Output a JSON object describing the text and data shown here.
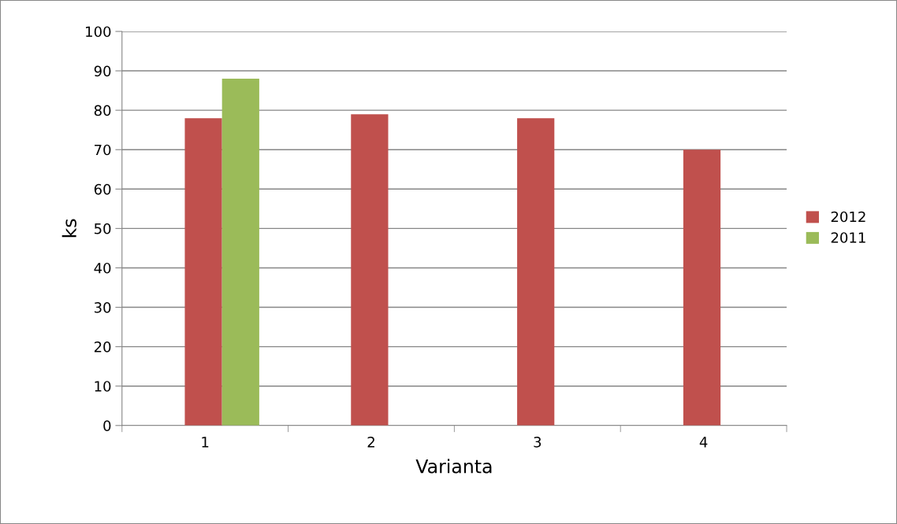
{
  "chart_data": {
    "type": "bar",
    "xlabel": "Varianta",
    "ylabel": "ks",
    "categories": [
      "1",
      "2",
      "3",
      "4"
    ],
    "series": [
      {
        "name": "2012",
        "color": "#c0504d",
        "values": [
          78,
          79,
          78,
          70
        ]
      },
      {
        "name": "2011",
        "color": "#9bbb59",
        "values": [
          88,
          null,
          null,
          null
        ]
      }
    ],
    "ylim": [
      0,
      100
    ],
    "yticks": [
      0,
      10,
      20,
      30,
      40,
      50,
      60,
      70,
      80,
      90,
      100
    ],
    "grid": "y",
    "legend": "right"
  }
}
